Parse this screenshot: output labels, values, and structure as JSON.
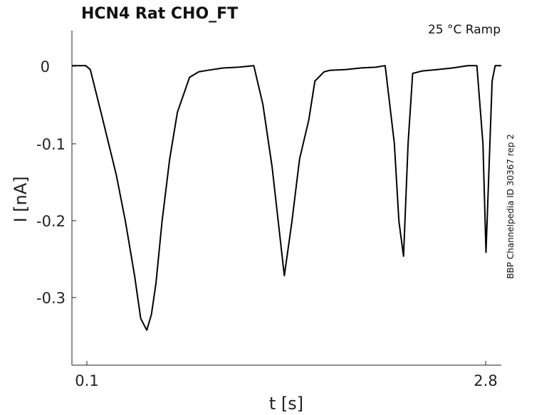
{
  "chart_data": {
    "type": "line",
    "title": "HCN4  Rat  CHO_FT",
    "subtitle": "25 °C  Ramp",
    "xlabel": "t [s]",
    "ylabel": "I [nA]",
    "side_label": "BBP Channelpedia ID 30367 rep 2",
    "x_ticks": [
      "0.1",
      "2.8"
    ],
    "y_ticks": [
      "0",
      "-0.1",
      "-0.2",
      "-0.3"
    ],
    "xlim": [
      0.01,
      2.82
    ],
    "ylim": [
      -0.385,
      0.045
    ],
    "grid": false,
    "series": [
      {
        "color": "#000000",
        "x": [
          0.01,
          0.05,
          0.1,
          0.13,
          0.2,
          0.3,
          0.36,
          0.42,
          0.46,
          0.5,
          0.53,
          0.56,
          0.6,
          0.65,
          0.7,
          0.78,
          0.84,
          0.9,
          1.0,
          1.1,
          1.2,
          1.26,
          1.32,
          1.36,
          1.4,
          1.45,
          1.5,
          1.56,
          1.6,
          1.66,
          1.7,
          1.8,
          1.9,
          2.0,
          2.06,
          2.12,
          2.15,
          2.18,
          2.21,
          2.24,
          2.3,
          2.4,
          2.5,
          2.6,
          2.66,
          2.7,
          2.72,
          2.76,
          2.78,
          2.8,
          2.82
        ],
        "y": [
          0.0,
          0.0,
          0.0,
          -0.005,
          -0.06,
          -0.14,
          -0.2,
          -0.27,
          -0.325,
          -0.34,
          -0.32,
          -0.28,
          -0.2,
          -0.12,
          -0.06,
          -0.015,
          -0.008,
          -0.006,
          -0.003,
          -0.002,
          0.0,
          -0.05,
          -0.13,
          -0.2,
          -0.27,
          -0.2,
          -0.12,
          -0.07,
          -0.02,
          -0.008,
          -0.006,
          -0.005,
          -0.003,
          -0.002,
          0.0,
          -0.1,
          -0.2,
          -0.245,
          -0.1,
          -0.01,
          -0.007,
          -0.005,
          -0.003,
          0.0,
          0.0,
          -0.1,
          -0.24,
          -0.02,
          0.0,
          0.0,
          0.0
        ]
      }
    ]
  }
}
